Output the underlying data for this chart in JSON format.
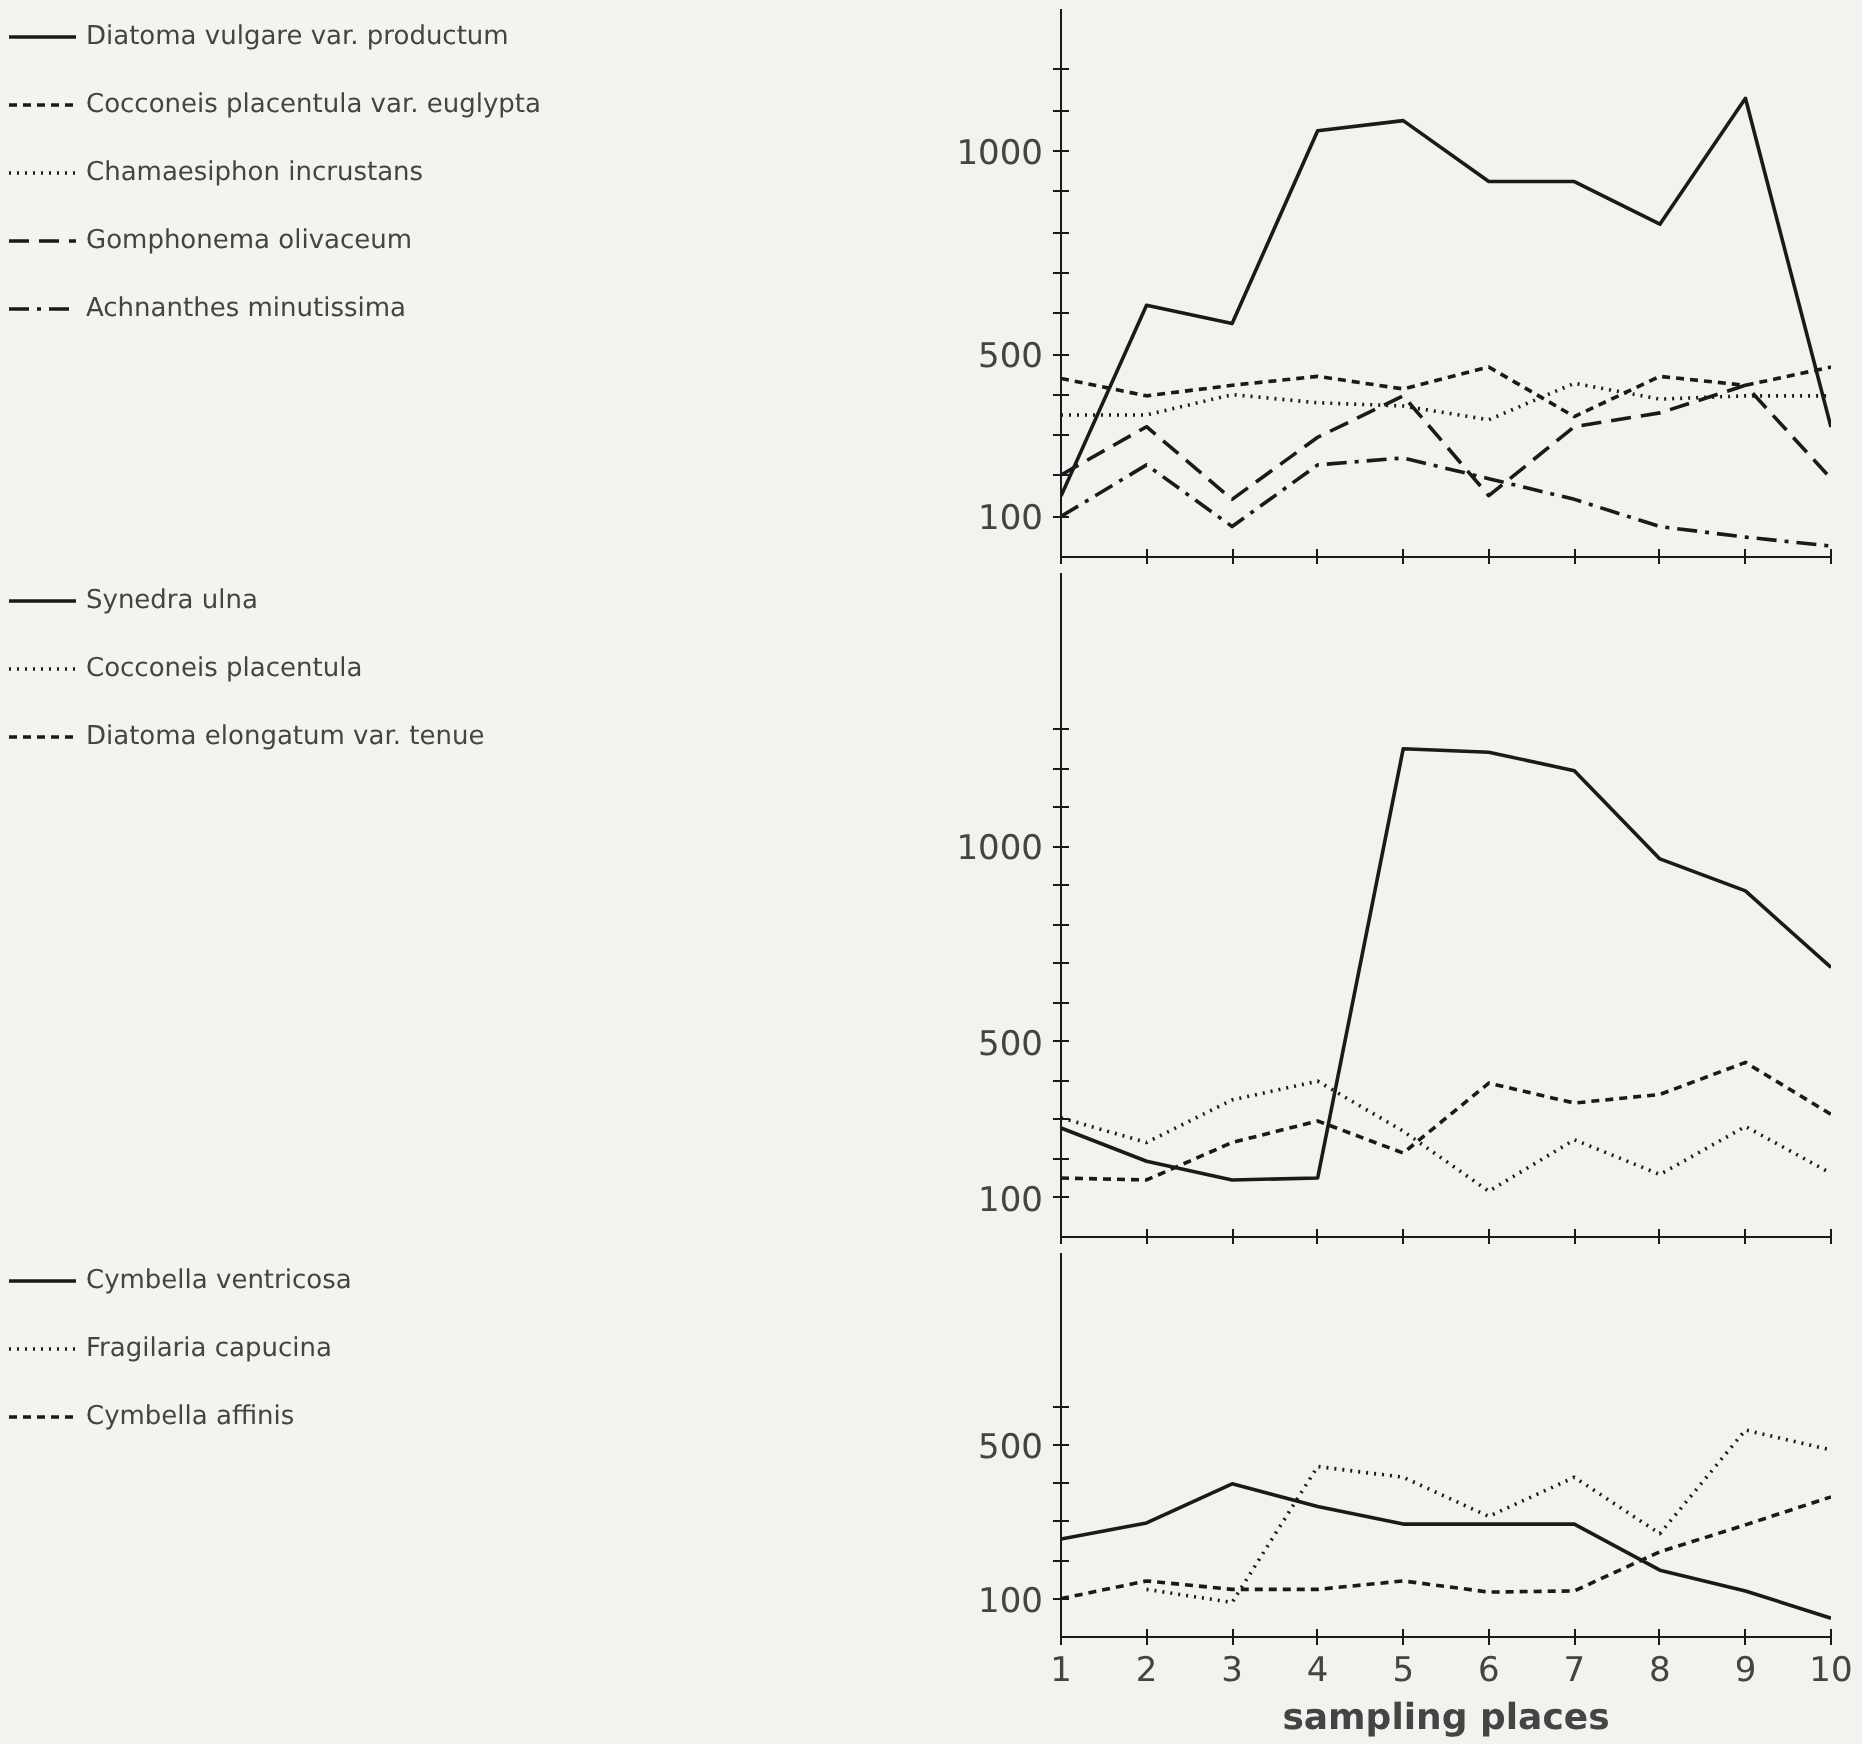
{
  "chart_data": [
    {
      "type": "line",
      "x": [
        1,
        2,
        3,
        4,
        5,
        6,
        7,
        8,
        9,
        10
      ],
      "xlim": [
        1,
        10
      ],
      "xticks": [
        {
          "value": 1,
          "label": null
        },
        {
          "value": 2,
          "label": null
        },
        {
          "value": 3,
          "label": null
        },
        {
          "value": 4,
          "label": null
        },
        {
          "value": 5,
          "label": null
        },
        {
          "value": 6,
          "label": null
        },
        {
          "value": 7,
          "label": null
        },
        {
          "value": 8,
          "label": null
        },
        {
          "value": 9,
          "label": null
        },
        {
          "value": 10,
          "label": null
        }
      ],
      "ylim": [
        0,
        1350
      ],
      "yticks": [
        100,
        {
          "value": 200,
          "label": null
        },
        {
          "value": 300,
          "label": null
        },
        {
          "value": 400,
          "label": null
        },
        500,
        {
          "value": 600,
          "label": null
        },
        {
          "value": 700,
          "label": null
        },
        {
          "value": 800,
          "label": null
        },
        {
          "value": 900,
          "label": null
        },
        1000,
        {
          "value": 1100,
          "label": null
        },
        {
          "value": 1200,
          "label": null
        }
      ],
      "tick_labels": "y",
      "legend": "left",
      "grid": false,
      "series": [
        {
          "name": "Diatoma vulgare var. productum",
          "color": "#1a1a1a",
          "line_style": "solid",
          "values": [
            150,
            620,
            575,
            1050,
            1075,
            925,
            925,
            820,
            1130,
            320
          ]
        },
        {
          "name": "Cocconeis placentula var. euglypta",
          "color": "#1a1a1a",
          "line_style": "dashed",
          "values": [
            440,
            397,
            423,
            445,
            414,
            468,
            346,
            445,
            423,
            468
          ]
        },
        {
          "name": "Chamaesiphon incrustans",
          "color": "#1a1a1a",
          "line_style": "dotted",
          "values": [
            350,
            350,
            400,
            380,
            372,
            338,
            428,
            389,
            397,
            397
          ]
        },
        {
          "name": "Gomphonema olivaceum",
          "color": "#1a1a1a",
          "line_style": "longdash",
          "values": [
            202,
            321,
            142,
            295,
            397,
            151,
            321,
            355,
            423,
            193
          ]
        },
        {
          "name": "Achnanthes minutissima",
          "color": "#1a1a1a",
          "line_style": "dashdot",
          "values": [
            100,
            227,
            75,
            227,
            244,
            193,
            142,
            75,
            49,
            27
          ]
        }
      ]
    },
    {
      "type": "line",
      "x": [
        1,
        2,
        3,
        4,
        5,
        6,
        7,
        8,
        9,
        10
      ],
      "xlim": [
        1,
        10
      ],
      "xticks": [
        {
          "value": 1,
          "label": null
        },
        {
          "value": 2,
          "label": null
        },
        {
          "value": 3,
          "label": null
        },
        {
          "value": 4,
          "label": null
        },
        {
          "value": 5,
          "label": null
        },
        {
          "value": 6,
          "label": null
        },
        {
          "value": 7,
          "label": null
        },
        {
          "value": 8,
          "label": null
        },
        {
          "value": 9,
          "label": null
        },
        {
          "value": 10,
          "label": null
        }
      ],
      "ylim": [
        0,
        1700
      ],
      "yticks": [
        100,
        {
          "value": 200,
          "label": null
        },
        {
          "value": 300,
          "label": null
        },
        {
          "value": 400,
          "label": null
        },
        500,
        {
          "value": 600,
          "label": null
        },
        {
          "value": 700,
          "label": null
        },
        {
          "value": 800,
          "label": null
        },
        {
          "value": 900,
          "label": null
        },
        1000,
        {
          "value": 1100,
          "label": null
        },
        {
          "value": 1200,
          "label": null
        },
        {
          "value": 1300,
          "label": null
        }
      ],
      "tick_labels": "y",
      "legend": "left",
      "grid": false,
      "series": [
        {
          "name": "Synedra ulna",
          "color": "#1a1a1a",
          "line_style": "solid",
          "values": [
            279,
            194,
            146,
            151,
            1250,
            1241,
            1194,
            968,
            886,
            690
          ]
        },
        {
          "name": "Cocconeis placentula",
          "color": "#1a1a1a",
          "line_style": "dotted",
          "values": [
            305,
            242,
            351,
            399,
            271,
            117,
            249,
            160,
            283,
            163
          ]
        },
        {
          "name": "Diatoma elongatum var. tenue",
          "color": "#1a1a1a",
          "line_style": "dashed",
          "values": [
            151,
            146,
            242,
            297,
            215,
            394,
            343,
            365,
            447,
            314
          ]
        }
      ]
    },
    {
      "type": "line",
      "x": [
        1,
        2,
        3,
        4,
        5,
        6,
        7,
        8,
        9,
        10
      ],
      "xlim": [
        1,
        10
      ],
      "xticks": [
        1,
        2,
        3,
        4,
        5,
        6,
        7,
        8,
        9,
        10
      ],
      "xlabel": "sampling places",
      "ylim": [
        0,
        1000
      ],
      "yticks": [
        100,
        {
          "value": 200,
          "label": null
        },
        {
          "value": 300,
          "label": null
        },
        {
          "value": 400,
          "label": null
        },
        500,
        {
          "value": 600,
          "label": null
        }
      ],
      "legend": "left",
      "grid": false,
      "series": [
        {
          "name": "Cymbella ventricosa",
          "color": "#1a1a1a",
          "line_style": "solid",
          "values": [
            255,
            297,
            399,
            340,
            294,
            294,
            294,
            174,
            120,
            49
          ]
        },
        {
          "name": "Fragilaria capucina",
          "color": "#1a1a1a",
          "line_style": "dotted",
          "values": [
            null,
            124,
            90,
            444,
            416,
            314,
            416,
            269,
            539,
            487
          ]
        },
        {
          "name": "Cymbella affinis",
          "color": "#1a1a1a",
          "line_style": "dashed",
          "values": [
            100,
            146,
            124,
            124,
            146,
            117,
            120,
            222,
            292,
            365
          ]
        }
      ]
    }
  ]
}
